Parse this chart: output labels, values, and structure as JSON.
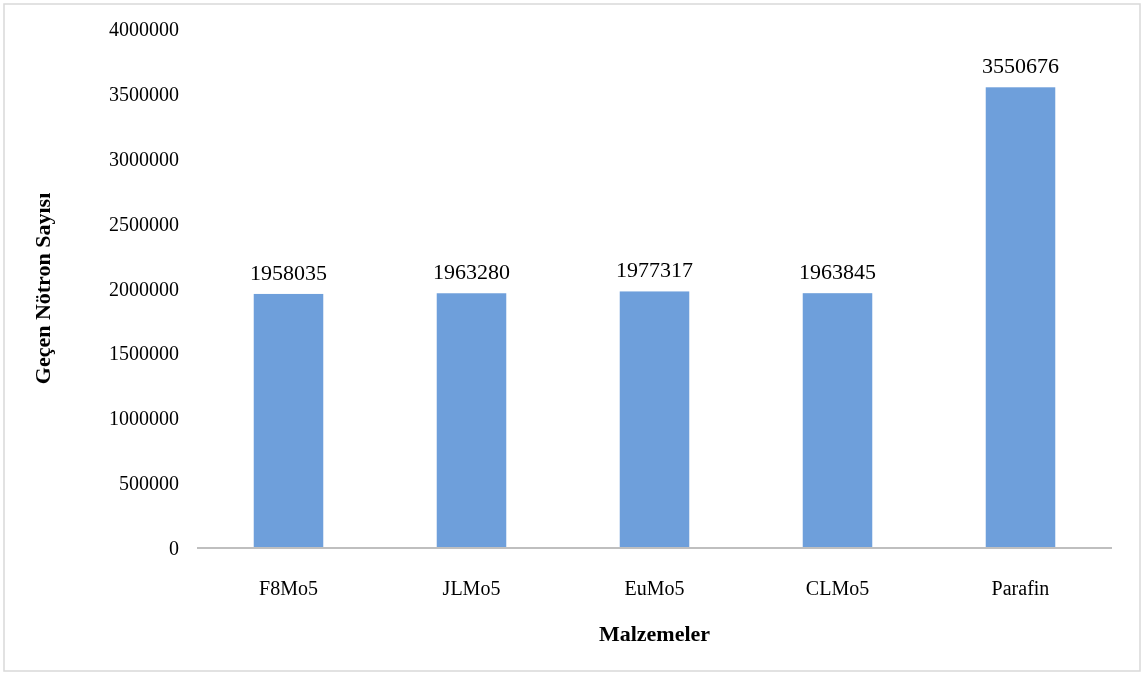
{
  "chart_data": {
    "type": "bar",
    "xlabel": "Malzemeler",
    "ylabel": "Geçen Nötron Sayısı",
    "categories": [
      "F8Mo5",
      "JLMo5",
      "EuMo5",
      "CLMo5",
      "Parafin"
    ],
    "values": [
      1958035,
      1963280,
      1977317,
      1963845,
      3550676
    ],
    "color": "#6e9fdb",
    "ylim": [
      0,
      4000000
    ],
    "yticks": [
      0,
      500000,
      1000000,
      1500000,
      2000000,
      2500000,
      3000000,
      3500000,
      4000000
    ],
    "data_labels": true,
    "grid": false
  }
}
